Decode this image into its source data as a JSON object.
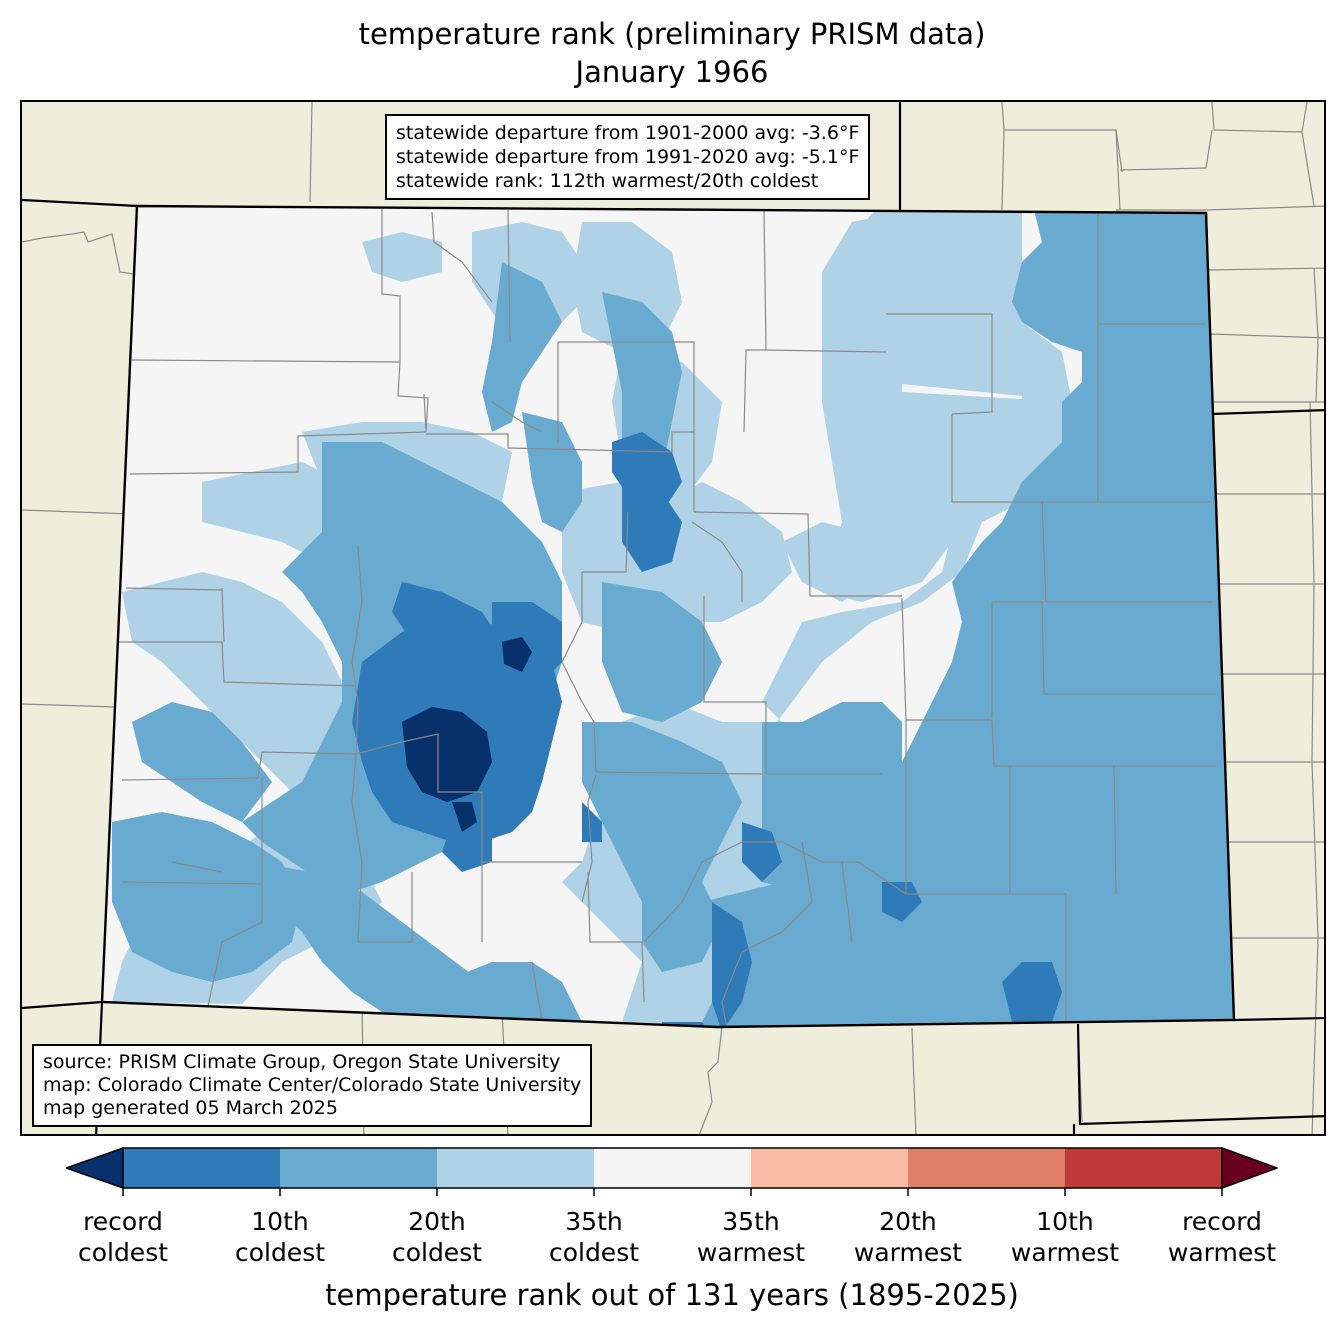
{
  "title": {
    "line1": "temperature rank (preliminary PRISM data)",
    "line2": "January 1966"
  },
  "stats": {
    "line1": "statewide departure from 1901-2000 avg: -3.6°F",
    "line2": "statewide departure from 1991-2020 avg: -5.1°F",
    "line3": "statewide rank: 112th warmest/20th coldest"
  },
  "source": {
    "line1": "source: PRISM Climate Group, Oregon State University",
    "line2": "map: Colorado Climate Center/Colorado State University",
    "line3": "map generated 05 March 2025"
  },
  "colorbar": {
    "label": "temperature rank out of 131 years (1895-2025)",
    "colors": {
      "below_min": "#08306b",
      "bins": [
        "#2f7ab8",
        "#69abd0",
        "#b0d2e6",
        "#f5f5f5",
        "#f9bca4",
        "#e17f69",
        "#c13a3a"
      ],
      "above_max": "#6a0020"
    },
    "ticks": [
      {
        "line1": "record",
        "line2": "coldest"
      },
      {
        "line1": "10th",
        "line2": "coldest"
      },
      {
        "line1": "20th",
        "line2": "coldest"
      },
      {
        "line1": "35th",
        "line2": "coldest"
      },
      {
        "line1": "35th",
        "line2": "warmest"
      },
      {
        "line1": "20th",
        "line2": "warmest"
      },
      {
        "line1": "10th",
        "line2": "warmest"
      },
      {
        "line1": "record",
        "line2": "warmest"
      }
    ]
  },
  "map_colors": {
    "land_outside": "#efeedd",
    "county_lines": "#8a8a8a",
    "state_lines": "#000000"
  }
}
